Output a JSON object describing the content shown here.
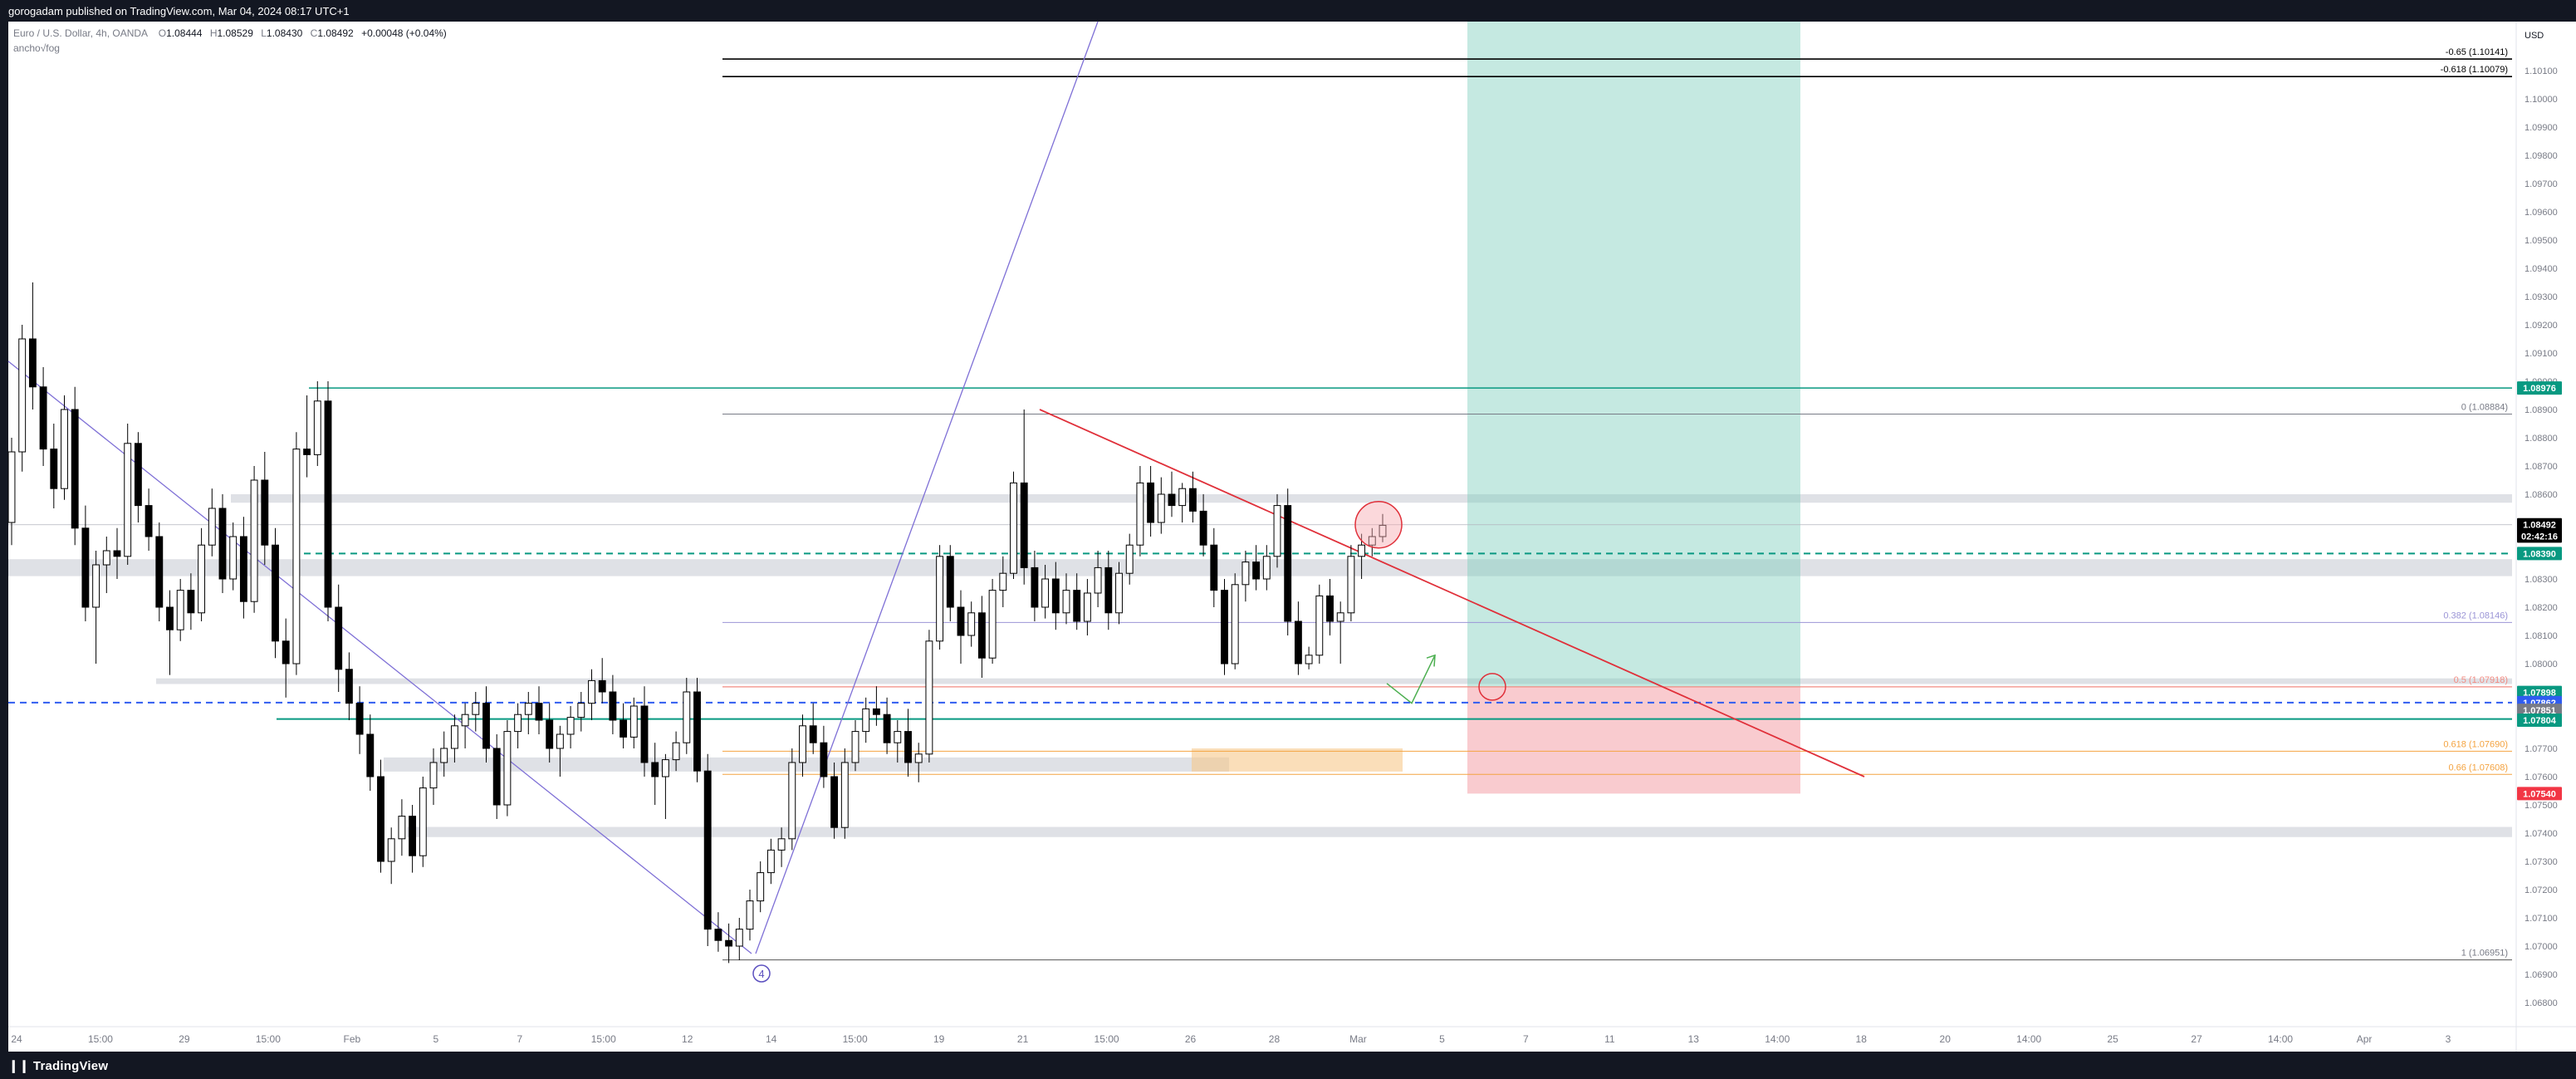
{
  "header": {
    "published": "gorogadam published on TradingView.com, Mar 04, 2024 08:17 UTC+1",
    "symbol": "Euro / U.S. Dollar, 4h, OANDA",
    "o_label": "O",
    "o_value": "1.08444",
    "h_label": "H",
    "h_value": "1.08529",
    "l_label": "L",
    "l_value": "1.08430",
    "c_label": "C",
    "c_value": "1.08492",
    "change": "+0.00048 (+0.04%)",
    "indicator": "ancho√fog"
  },
  "footer": {
    "brand": "TradingView"
  },
  "colors": {
    "bull": "#ffffff",
    "bear": "#000000",
    "green_band": "#7fcfbc",
    "red_band": "#f4a0a8",
    "teal_line": "#089981",
    "red_trend": "#e0303a",
    "purple": "#7e6fd6",
    "orange": "#f4a340",
    "blue_dash": "#2f5cf0"
  },
  "chart_data": {
    "type": "candlestick",
    "currency": "USD",
    "y_ticks": [
      "1.10100",
      "1.10000",
      "1.09900",
      "1.09800",
      "1.09700",
      "1.09600",
      "1.09500",
      "1.09400",
      "1.09300",
      "1.09200",
      "1.09100",
      "1.09000",
      "1.08900",
      "1.08800",
      "1.08700",
      "1.08600",
      "1.08500",
      "1.08400",
      "1.08300",
      "1.08200",
      "1.08100",
      "1.08000",
      "1.07900",
      "1.07800",
      "1.07700",
      "1.07600",
      "1.07500",
      "1.07400",
      "1.07300",
      "1.07200",
      "1.07100",
      "1.07000",
      "1.06900",
      "1.06800"
    ],
    "x_ticks": [
      "24",
      "15:00",
      "29",
      "15:00",
      "Feb",
      "5",
      "7",
      "15:00",
      "12",
      "14",
      "15:00",
      "19",
      "21",
      "15:00",
      "26",
      "28",
      "Mar",
      "5",
      "7",
      "11",
      "13",
      "14:00",
      "18",
      "20",
      "14:00",
      "25",
      "27",
      "14:00",
      "Apr",
      "3"
    ],
    "price_labels": [
      {
        "text": "1.08976",
        "price": 1.08976,
        "color": "#089981"
      },
      {
        "text": "1.08492",
        "price": 1.08492,
        "color": "#000000"
      },
      {
        "text": "02:42:16",
        "price": 1.08452,
        "color": "#000000"
      },
      {
        "text": "1.08390",
        "price": 1.0839,
        "color": "#089981"
      },
      {
        "text": "1.07898",
        "price": 1.07898,
        "color": "#089981"
      },
      {
        "text": "1.07862",
        "price": 1.07862,
        "color": "#2f5cf0"
      },
      {
        "text": "1.07851",
        "price": 1.07835,
        "color": "#787b86"
      },
      {
        "text": "1.07804",
        "price": 1.078,
        "color": "#089981"
      },
      {
        "text": "1.07540",
        "price": 1.0754,
        "color": "#f23645"
      }
    ],
    "fib_labels": [
      {
        "text": "-0.65 (1.10141)",
        "price": 1.10141,
        "color": "#000000"
      },
      {
        "text": "-0.618 (1.10079)",
        "price": 1.10079,
        "color": "#000000"
      },
      {
        "text": "0 (1.08884)",
        "price": 1.08884,
        "color": "#787b86"
      },
      {
        "text": "0.382 (1.08146)",
        "price": 1.08146,
        "color": "#9b95d6"
      },
      {
        "text": "0.5 (1.07918)",
        "price": 1.07918,
        "color": "#f28b82"
      },
      {
        "text": "0.618 (1.07690)",
        "price": 1.0769,
        "color": "#f4a340"
      },
      {
        "text": "0.66 (1.07608)",
        "price": 1.07608,
        "color": "#f4a340"
      },
      {
        "text": "1 (1.06951)",
        "price": 1.06951,
        "color": "#787b86"
      }
    ],
    "wave_label": "4",
    "candles": [
      [
        1.085,
        1.088,
        1.0842,
        1.0875
      ],
      [
        1.0875,
        1.092,
        1.0868,
        1.0915
      ],
      [
        1.0915,
        1.0935,
        1.089,
        1.0898
      ],
      [
        1.0898,
        1.0905,
        1.087,
        1.0876
      ],
      [
        1.0876,
        1.0885,
        1.0855,
        1.0862
      ],
      [
        1.0862,
        1.0895,
        1.0858,
        1.089
      ],
      [
        1.089,
        1.0898,
        1.0842,
        1.0848
      ],
      [
        1.0848,
        1.0856,
        1.0815,
        1.082
      ],
      [
        1.082,
        1.084,
        1.08,
        1.0835
      ],
      [
        1.0835,
        1.0845,
        1.0825,
        1.084
      ],
      [
        1.084,
        1.0848,
        1.083,
        1.0838
      ],
      [
        1.0838,
        1.0885,
        1.0835,
        1.0878
      ],
      [
        1.0878,
        1.0882,
        1.085,
        1.0856
      ],
      [
        1.0856,
        1.0862,
        1.084,
        1.0845
      ],
      [
        1.0845,
        1.085,
        1.0815,
        1.082
      ],
      [
        1.082,
        1.0826,
        1.0796,
        1.0812
      ],
      [
        1.0812,
        1.083,
        1.0808,
        1.0826
      ],
      [
        1.0826,
        1.0832,
        1.0812,
        1.0818
      ],
      [
        1.0818,
        1.0848,
        1.0815,
        1.0842
      ],
      [
        1.0842,
        1.0862,
        1.0838,
        1.0855
      ],
      [
        1.0855,
        1.086,
        1.0825,
        1.083
      ],
      [
        1.083,
        1.085,
        1.0826,
        1.0845
      ],
      [
        1.0845,
        1.0852,
        1.0816,
        1.0822
      ],
      [
        1.0822,
        1.087,
        1.0818,
        1.0865
      ],
      [
        1.0865,
        1.0875,
        1.0835,
        1.0842
      ],
      [
        1.0842,
        1.0848,
        1.0802,
        1.0808
      ],
      [
        1.0808,
        1.0816,
        1.0788,
        1.08
      ],
      [
        1.08,
        1.0882,
        1.0796,
        1.0876
      ],
      [
        1.0876,
        1.0895,
        1.0866,
        1.0874
      ],
      [
        1.0874,
        1.09,
        1.087,
        1.0893
      ],
      [
        1.0893,
        1.09,
        1.0815,
        1.082
      ],
      [
        1.082,
        1.0828,
        1.079,
        1.0798
      ],
      [
        1.0798,
        1.0804,
        1.078,
        1.0786
      ],
      [
        1.0786,
        1.0792,
        1.0768,
        1.0775
      ],
      [
        1.0775,
        1.0782,
        1.0755,
        1.076
      ],
      [
        1.076,
        1.0766,
        1.0726,
        1.073
      ],
      [
        1.073,
        1.0742,
        1.0722,
        1.0738
      ],
      [
        1.0738,
        1.0752,
        1.0732,
        1.0746
      ],
      [
        1.0746,
        1.075,
        1.0726,
        1.0732
      ],
      [
        1.0732,
        1.076,
        1.0728,
        1.0756
      ],
      [
        1.0756,
        1.077,
        1.075,
        1.0765
      ],
      [
        1.0765,
        1.0776,
        1.076,
        1.077
      ],
      [
        1.077,
        1.0782,
        1.0765,
        1.0778
      ],
      [
        1.0778,
        1.0786,
        1.077,
        1.0782
      ],
      [
        1.0782,
        1.079,
        1.0776,
        1.0786
      ],
      [
        1.0786,
        1.0792,
        1.0765,
        1.077
      ],
      [
        1.077,
        1.0775,
        1.0745,
        1.075
      ],
      [
        1.075,
        1.078,
        1.0746,
        1.0776
      ],
      [
        1.0776,
        1.0786,
        1.077,
        1.0782
      ],
      [
        1.0782,
        1.079,
        1.0775,
        1.0786
      ],
      [
        1.0786,
        1.0792,
        1.0775,
        1.078
      ],
      [
        1.078,
        1.0786,
        1.0765,
        1.077
      ],
      [
        1.077,
        1.0778,
        1.076,
        1.0775
      ],
      [
        1.0775,
        1.0785,
        1.077,
        1.0781
      ],
      [
        1.0781,
        1.079,
        1.0776,
        1.0786
      ],
      [
        1.0786,
        1.0798,
        1.078,
        1.0794
      ],
      [
        1.0794,
        1.0802,
        1.0786,
        1.079
      ],
      [
        1.079,
        1.0796,
        1.0775,
        1.078
      ],
      [
        1.078,
        1.0786,
        1.077,
        1.0774
      ],
      [
        1.0774,
        1.0788,
        1.077,
        1.0785
      ],
      [
        1.0785,
        1.0792,
        1.076,
        1.0765
      ],
      [
        1.0765,
        1.0772,
        1.075,
        1.076
      ],
      [
        1.076,
        1.0768,
        1.0745,
        1.0766
      ],
      [
        1.0766,
        1.0776,
        1.0762,
        1.0772
      ],
      [
        1.0772,
        1.0795,
        1.0768,
        1.079
      ],
      [
        1.079,
        1.0795,
        1.0758,
        1.0762
      ],
      [
        1.0762,
        1.0768,
        1.07,
        1.0706
      ],
      [
        1.0706,
        1.0712,
        1.0698,
        1.0702
      ],
      [
        1.0702,
        1.0708,
        1.0694,
        1.07
      ],
      [
        1.07,
        1.071,
        1.0695,
        1.0706
      ],
      [
        1.0706,
        1.072,
        1.0702,
        1.0716
      ],
      [
        1.0716,
        1.073,
        1.0712,
        1.0726
      ],
      [
        1.0726,
        1.0738,
        1.0722,
        1.0734
      ],
      [
        1.0734,
        1.0742,
        1.0728,
        1.0738
      ],
      [
        1.0738,
        1.077,
        1.0734,
        1.0765
      ],
      [
        1.0765,
        1.0782,
        1.076,
        1.0778
      ],
      [
        1.0778,
        1.0786,
        1.0768,
        1.0772
      ],
      [
        1.0772,
        1.0778,
        1.0756,
        1.076
      ],
      [
        1.076,
        1.0765,
        1.0738,
        1.0742
      ],
      [
        1.0742,
        1.077,
        1.0738,
        1.0765
      ],
      [
        1.0765,
        1.078,
        1.0762,
        1.0776
      ],
      [
        1.0776,
        1.0788,
        1.0772,
        1.0784
      ],
      [
        1.0784,
        1.0792,
        1.0778,
        1.0782
      ],
      [
        1.0782,
        1.0788,
        1.0768,
        1.0772
      ],
      [
        1.0772,
        1.078,
        1.0765,
        1.0776
      ],
      [
        1.0776,
        1.0784,
        1.076,
        1.0765
      ],
      [
        1.0765,
        1.0772,
        1.0758,
        1.0768
      ],
      [
        1.0768,
        1.0812,
        1.0765,
        1.0808
      ],
      [
        1.0808,
        1.0842,
        1.0805,
        1.0838
      ],
      [
        1.0838,
        1.0842,
        1.0815,
        1.082
      ],
      [
        1.082,
        1.0826,
        1.08,
        1.081
      ],
      [
        1.081,
        1.0822,
        1.0806,
        1.0818
      ],
      [
        1.0818,
        1.0824,
        1.0795,
        1.0802
      ],
      [
        1.0802,
        1.083,
        1.08,
        1.0826
      ],
      [
        1.0826,
        1.0838,
        1.082,
        1.0832
      ],
      [
        1.0832,
        1.0868,
        1.083,
        1.0864
      ],
      [
        1.0864,
        1.089,
        1.0828,
        1.0834
      ],
      [
        1.0834,
        1.084,
        1.0815,
        1.082
      ],
      [
        1.082,
        1.0835,
        1.0816,
        1.083
      ],
      [
        1.083,
        1.0836,
        1.0812,
        1.0818
      ],
      [
        1.0818,
        1.0832,
        1.0814,
        1.0826
      ],
      [
        1.0826,
        1.0832,
        1.0812,
        1.0815
      ],
      [
        1.0815,
        1.083,
        1.081,
        1.0825
      ],
      [
        1.0825,
        1.084,
        1.082,
        1.0834
      ],
      [
        1.0834,
        1.084,
        1.0812,
        1.0818
      ],
      [
        1.0818,
        1.0836,
        1.0814,
        1.0832
      ],
      [
        1.0832,
        1.0846,
        1.0828,
        1.0842
      ],
      [
        1.0842,
        1.087,
        1.0838,
        1.0864
      ],
      [
        1.0864,
        1.087,
        1.0845,
        1.085
      ],
      [
        1.085,
        1.0866,
        1.0846,
        1.086
      ],
      [
        1.086,
        1.0868,
        1.0852,
        1.0856
      ],
      [
        1.0856,
        1.0864,
        1.085,
        1.0862
      ],
      [
        1.0862,
        1.0868,
        1.085,
        1.0854
      ],
      [
        1.0854,
        1.086,
        1.0838,
        1.0842
      ],
      [
        1.0842,
        1.0848,
        1.082,
        1.0826
      ],
      [
        1.0826,
        1.083,
        1.0796,
        1.08
      ],
      [
        1.08,
        1.0832,
        1.0798,
        1.0828
      ],
      [
        1.0828,
        1.084,
        1.0822,
        1.0836
      ],
      [
        1.0836,
        1.0842,
        1.0826,
        1.083
      ],
      [
        1.083,
        1.0842,
        1.0826,
        1.0838
      ],
      [
        1.0838,
        1.086,
        1.0834,
        1.0856
      ],
      [
        1.0856,
        1.0862,
        1.081,
        1.0815
      ],
      [
        1.0815,
        1.0822,
        1.0796,
        1.08
      ],
      [
        1.08,
        1.0806,
        1.0798,
        1.0803
      ],
      [
        1.0803,
        1.0828,
        1.08,
        1.0824
      ],
      [
        1.0824,
        1.083,
        1.081,
        1.0815
      ],
      [
        1.0815,
        1.0822,
        1.08,
        1.0818
      ],
      [
        1.0818,
        1.0842,
        1.0815,
        1.0838
      ],
      [
        1.0838,
        1.0846,
        1.083,
        1.0842
      ],
      [
        1.0842,
        1.0848,
        1.0838,
        1.0845
      ],
      [
        1.0845,
        1.0853,
        1.0843,
        1.0849
      ]
    ]
  }
}
